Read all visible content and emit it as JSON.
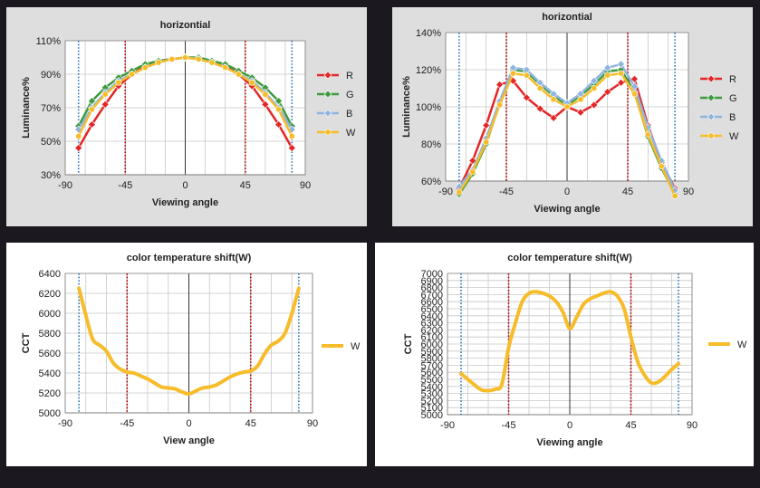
{
  "chart_data": [
    {
      "type": "line",
      "title": "horizontial",
      "xlabel": "Viewing angle",
      "ylabel": "Luminance%",
      "xlim": [
        -90,
        90
      ],
      "xticks": [
        -90,
        -45,
        0,
        45,
        90
      ],
      "ylim": [
        30,
        110
      ],
      "yticks": [
        30,
        50,
        70,
        90,
        110
      ],
      "ytick_format": "percent",
      "grid": true,
      "legend": "right",
      "x": [
        -80,
        -70,
        -60,
        -50,
        -40,
        -30,
        -20,
        -10,
        0,
        10,
        20,
        30,
        40,
        50,
        60,
        70,
        80
      ],
      "ref_lines": [
        {
          "x": -80,
          "color": "#2e75b6"
        },
        {
          "x": 80,
          "color": "#2e75b6"
        },
        {
          "x": -45,
          "color": "#c00000"
        },
        {
          "x": 45,
          "color": "#c00000"
        }
      ],
      "series": [
        {
          "name": "R",
          "color": "#e32626",
          "marker": "diamond",
          "values": [
            46,
            60,
            72,
            83,
            90,
            95,
            98,
            99,
            100,
            99,
            98,
            95,
            90,
            83,
            72,
            60,
            46
          ]
        },
        {
          "name": "G",
          "color": "#3d9a3d",
          "marker": "diamond",
          "values": [
            59,
            74,
            82,
            88,
            92,
            96,
            98,
            99,
            100,
            100,
            98,
            96,
            92,
            88,
            82,
            74,
            59
          ]
        },
        {
          "name": "B",
          "color": "#8fb4de",
          "marker": "diamond",
          "values": [
            57,
            70,
            79,
            86,
            90,
            94,
            97,
            99,
            100,
            99,
            97,
            94,
            90,
            86,
            79,
            70,
            57
          ]
        },
        {
          "name": "W",
          "color": "#f6bc2a",
          "marker": "circle",
          "values": [
            53,
            69,
            78,
            85,
            90,
            94,
            97,
            99,
            100,
            99,
            97,
            94,
            90,
            85,
            78,
            69,
            53
          ]
        }
      ]
    },
    {
      "type": "line",
      "title": "horizontial",
      "xlabel": "Viewing angle",
      "ylabel": "Luminance%",
      "xlim": [
        -90,
        90
      ],
      "xticks": [
        -90,
        -45,
        0,
        45,
        90
      ],
      "ylim": [
        60,
        140
      ],
      "yticks": [
        60,
        80,
        100,
        120,
        140
      ],
      "ytick_format": "percent",
      "grid": true,
      "legend": "right",
      "x": [
        -80,
        -70,
        -60,
        -50,
        -40,
        -30,
        -20,
        -10,
        0,
        10,
        20,
        30,
        40,
        50,
        60,
        70,
        80
      ],
      "ref_lines": [
        {
          "x": -80,
          "color": "#2e75b6"
        },
        {
          "x": 80,
          "color": "#2e75b6"
        },
        {
          "x": -45,
          "color": "#c00000"
        },
        {
          "x": 45,
          "color": "#c00000"
        }
      ],
      "series": [
        {
          "name": "R",
          "color": "#e32626",
          "marker": "diamond",
          "values": [
            56,
            71,
            90,
            112,
            114,
            105,
            99,
            94,
            100,
            97,
            101,
            108,
            113,
            115,
            90,
            70,
            56
          ]
        },
        {
          "name": "G",
          "color": "#3d9a3d",
          "marker": "diamond",
          "values": [
            53,
            64,
            80,
            102,
            120,
            119,
            112,
            106,
            101,
            106,
            112,
            119,
            120,
            108,
            84,
            67,
            53
          ]
        },
        {
          "name": "B",
          "color": "#8fb4de",
          "marker": "diamond",
          "values": [
            57,
            66,
            83,
            103,
            121,
            120,
            113,
            107,
            102,
            107,
            114,
            121,
            123,
            111,
            89,
            71,
            55
          ]
        },
        {
          "name": "W",
          "color": "#f6bc2a",
          "marker": "circle",
          "values": [
            54,
            65,
            81,
            101,
            118,
            117,
            110,
            104,
            100,
            104,
            110,
            117,
            118,
            107,
            85,
            68,
            52
          ]
        }
      ]
    },
    {
      "type": "line",
      "title": "color temperature shift(W)",
      "xlabel": "View angle",
      "ylabel": "CCT",
      "xlim": [
        -90,
        90
      ],
      "xticks": [
        -90,
        -45,
        0,
        45,
        90
      ],
      "ylim": [
        5000,
        6400
      ],
      "yticks": [
        5000,
        5200,
        5400,
        5600,
        5800,
        6000,
        6200,
        6400
      ],
      "grid": true,
      "legend": "right",
      "x": [
        -80,
        -75,
        -70,
        -65,
        -60,
        -55,
        -50,
        -45,
        -40,
        -35,
        -30,
        -25,
        -20,
        -15,
        -10,
        -5,
        0,
        5,
        10,
        15,
        20,
        25,
        30,
        35,
        40,
        45,
        50,
        55,
        60,
        65,
        70,
        75,
        80
      ],
      "ref_lines": [
        {
          "x": -80,
          "color": "#2e75b6"
        },
        {
          "x": 80,
          "color": "#2e75b6"
        },
        {
          "x": -45,
          "color": "#c00000"
        },
        {
          "x": 45,
          "color": "#c00000"
        }
      ],
      "series": [
        {
          "name": "W",
          "color": "#f6bc2a",
          "marker": "none",
          "values": [
            6250,
            5980,
            5740,
            5680,
            5620,
            5500,
            5440,
            5410,
            5400,
            5370,
            5340,
            5300,
            5260,
            5250,
            5240,
            5210,
            5190,
            5220,
            5250,
            5260,
            5280,
            5320,
            5360,
            5390,
            5410,
            5420,
            5470,
            5590,
            5680,
            5720,
            5800,
            6000,
            6250
          ]
        }
      ]
    },
    {
      "type": "line",
      "title": "color temperature shift(W)",
      "xlabel": "Viewing angle",
      "ylabel": "CCT",
      "xlim": [
        -90,
        90
      ],
      "xticks": [
        -90,
        -45,
        0,
        45,
        90
      ],
      "ylim": [
        5000,
        7000
      ],
      "yticks": [
        5000,
        5100,
        5200,
        5300,
        5400,
        5500,
        5600,
        5700,
        5800,
        5900,
        6000,
        6100,
        6200,
        6300,
        6400,
        6500,
        6600,
        6700,
        6800,
        6900,
        7000
      ],
      "grid": true,
      "legend": "right",
      "x": [
        -80,
        -75,
        -70,
        -65,
        -60,
        -55,
        -50,
        -45,
        -40,
        -35,
        -30,
        -25,
        -20,
        -15,
        -10,
        -5,
        0,
        5,
        10,
        15,
        20,
        25,
        30,
        35,
        40,
        45,
        50,
        55,
        60,
        65,
        70,
        75,
        80
      ],
      "ref_lines": [
        {
          "x": -80,
          "color": "#2e75b6"
        },
        {
          "x": 80,
          "color": "#2e75b6"
        },
        {
          "x": -45,
          "color": "#c00000"
        },
        {
          "x": 45,
          "color": "#c00000"
        }
      ],
      "series": [
        {
          "name": "W",
          "color": "#f6bc2a",
          "marker": "none",
          "values": [
            5580,
            5500,
            5420,
            5350,
            5340,
            5360,
            5430,
            5950,
            6300,
            6600,
            6720,
            6740,
            6720,
            6680,
            6600,
            6450,
            6220,
            6380,
            6560,
            6640,
            6680,
            6720,
            6740,
            6680,
            6500,
            6100,
            5750,
            5560,
            5450,
            5460,
            5540,
            5640,
            5720
          ]
        }
      ]
    }
  ]
}
